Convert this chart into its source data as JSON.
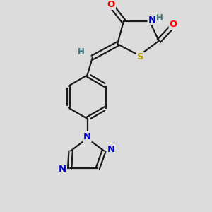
{
  "background_color": "#dcdcdc",
  "bond_color": "#1a1a1a",
  "atom_colors": {
    "O": "#ff0000",
    "N": "#0000cd",
    "S": "#b8a000",
    "H": "#3a7a7a"
  },
  "figsize": [
    3.0,
    3.0
  ],
  "dpi": 100
}
